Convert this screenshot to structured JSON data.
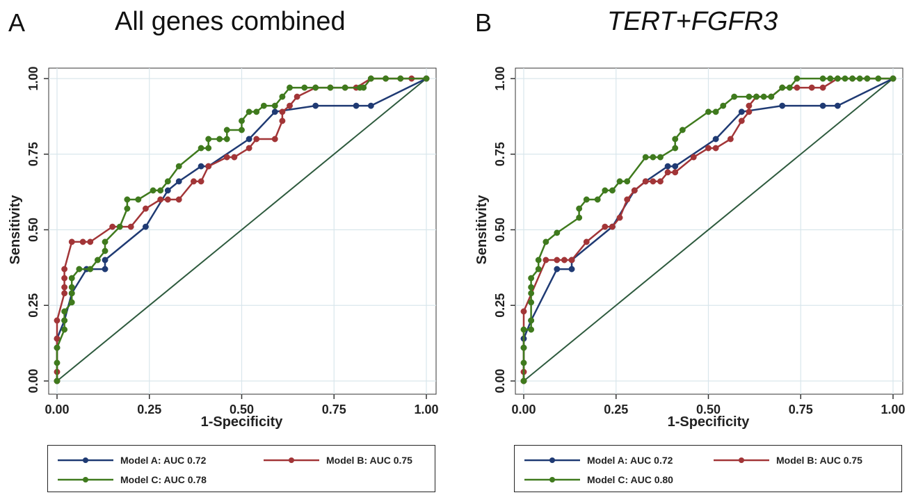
{
  "colors": {
    "model_a": "#1f3a73",
    "model_b": "#a23537",
    "model_c": "#3f7a1d",
    "diagonal": "#2d5a3d",
    "grid": "#d9e6ec",
    "axis": "#333333",
    "plot_bg": "#ffffff"
  },
  "icons": {
    "marker": "filled-circle"
  },
  "chart_data": [
    {
      "type": "line",
      "panel_label": "A",
      "title": "All genes combined",
      "xlabel": "1-Specificity",
      "ylabel": "Sensitivity",
      "xlim": [
        0,
        1
      ],
      "ylim": [
        0,
        1
      ],
      "xticks": [
        "0.00",
        "0.25",
        "0.50",
        "0.75",
        "1.00"
      ],
      "yticks": [
        "0.00",
        "0.25",
        "0.50",
        "0.75",
        "1.00"
      ],
      "grid": true,
      "legend_position": "bottom",
      "reference_line": [
        [
          0,
          0
        ],
        [
          1,
          1
        ]
      ],
      "series": [
        {
          "name": "Model A: AUC 0.72",
          "color_key": "model_a",
          "points": [
            [
              0,
              0
            ],
            [
              0,
              0.11
            ],
            [
              0,
              0.14
            ],
            [
              0.02,
              0.2
            ],
            [
              0.04,
              0.29
            ],
            [
              0.08,
              0.37
            ],
            [
              0.13,
              0.37
            ],
            [
              0.13,
              0.4
            ],
            [
              0.24,
              0.51
            ],
            [
              0.3,
              0.63
            ],
            [
              0.33,
              0.66
            ],
            [
              0.39,
              0.71
            ],
            [
              0.41,
              0.71
            ],
            [
              0.52,
              0.8
            ],
            [
              0.59,
              0.89
            ],
            [
              0.7,
              0.91
            ],
            [
              0.81,
              0.91
            ],
            [
              0.85,
              0.91
            ],
            [
              1,
              1
            ]
          ]
        },
        {
          "name": "Model B: AUC 0.75",
          "color_key": "model_b",
          "points": [
            [
              0,
              0
            ],
            [
              0,
              0.03
            ],
            [
              0,
              0.14
            ],
            [
              0,
              0.2
            ],
            [
              0.02,
              0.29
            ],
            [
              0.02,
              0.31
            ],
            [
              0.02,
              0.34
            ],
            [
              0.02,
              0.37
            ],
            [
              0.04,
              0.46
            ],
            [
              0.07,
              0.46
            ],
            [
              0.09,
              0.46
            ],
            [
              0.15,
              0.51
            ],
            [
              0.2,
              0.51
            ],
            [
              0.24,
              0.57
            ],
            [
              0.28,
              0.6
            ],
            [
              0.3,
              0.6
            ],
            [
              0.33,
              0.6
            ],
            [
              0.37,
              0.66
            ],
            [
              0.39,
              0.66
            ],
            [
              0.41,
              0.71
            ],
            [
              0.46,
              0.74
            ],
            [
              0.48,
              0.74
            ],
            [
              0.52,
              0.77
            ],
            [
              0.54,
              0.8
            ],
            [
              0.59,
              0.8
            ],
            [
              0.61,
              0.86
            ],
            [
              0.61,
              0.89
            ],
            [
              0.63,
              0.91
            ],
            [
              0.65,
              0.94
            ],
            [
              0.7,
              0.97
            ],
            [
              0.74,
              0.97
            ],
            [
              0.78,
              0.97
            ],
            [
              0.81,
              0.97
            ],
            [
              0.85,
              1
            ],
            [
              0.89,
              1
            ],
            [
              0.93,
              1
            ],
            [
              0.96,
              1
            ],
            [
              1,
              1
            ]
          ]
        },
        {
          "name": "Model C: AUC 0.78",
          "color_key": "model_c",
          "points": [
            [
              0,
              0
            ],
            [
              0,
              0.06
            ],
            [
              0,
              0.11
            ],
            [
              0.02,
              0.17
            ],
            [
              0.02,
              0.2
            ],
            [
              0.02,
              0.23
            ],
            [
              0.04,
              0.26
            ],
            [
              0.04,
              0.29
            ],
            [
              0.04,
              0.31
            ],
            [
              0.04,
              0.34
            ],
            [
              0.06,
              0.37
            ],
            [
              0.09,
              0.37
            ],
            [
              0.11,
              0.4
            ],
            [
              0.13,
              0.43
            ],
            [
              0.13,
              0.46
            ],
            [
              0.17,
              0.51
            ],
            [
              0.19,
              0.57
            ],
            [
              0.19,
              0.6
            ],
            [
              0.22,
              0.6
            ],
            [
              0.26,
              0.63
            ],
            [
              0.28,
              0.63
            ],
            [
              0.3,
              0.66
            ],
            [
              0.33,
              0.71
            ],
            [
              0.39,
              0.77
            ],
            [
              0.41,
              0.77
            ],
            [
              0.41,
              0.8
            ],
            [
              0.44,
              0.8
            ],
            [
              0.46,
              0.8
            ],
            [
              0.46,
              0.83
            ],
            [
              0.5,
              0.83
            ],
            [
              0.5,
              0.86
            ],
            [
              0.52,
              0.89
            ],
            [
              0.54,
              0.89
            ],
            [
              0.56,
              0.91
            ],
            [
              0.59,
              0.91
            ],
            [
              0.61,
              0.94
            ],
            [
              0.63,
              0.97
            ],
            [
              0.67,
              0.97
            ],
            [
              0.7,
              0.97
            ],
            [
              0.74,
              0.97
            ],
            [
              0.78,
              0.97
            ],
            [
              0.82,
              0.97
            ],
            [
              0.83,
              0.97
            ],
            [
              0.85,
              1
            ],
            [
              0.89,
              1
            ],
            [
              0.93,
              1
            ],
            [
              1,
              1
            ]
          ]
        }
      ]
    },
    {
      "type": "line",
      "panel_label": "B",
      "title": "TERT+FGFR3",
      "xlabel": "1-Specificity",
      "ylabel": "Sensitivity",
      "xlim": [
        0,
        1
      ],
      "ylim": [
        0,
        1
      ],
      "xticks": [
        "0.00",
        "0.25",
        "0.50",
        "0.75",
        "1.00"
      ],
      "yticks": [
        "0.00",
        "0.25",
        "0.50",
        "0.75",
        "1.00"
      ],
      "grid": true,
      "legend_position": "bottom",
      "reference_line": [
        [
          0,
          0
        ],
        [
          1,
          1
        ]
      ],
      "series": [
        {
          "name": "Model A: AUC 0.72",
          "color_key": "model_a",
          "points": [
            [
              0,
              0
            ],
            [
              0,
              0.11
            ],
            [
              0,
              0.14
            ],
            [
              0.02,
              0.2
            ],
            [
              0.09,
              0.37
            ],
            [
              0.13,
              0.37
            ],
            [
              0.13,
              0.4
            ],
            [
              0.24,
              0.51
            ],
            [
              0.3,
              0.63
            ],
            [
              0.33,
              0.66
            ],
            [
              0.39,
              0.71
            ],
            [
              0.41,
              0.71
            ],
            [
              0.52,
              0.8
            ],
            [
              0.59,
              0.89
            ],
            [
              0.7,
              0.91
            ],
            [
              0.81,
              0.91
            ],
            [
              0.85,
              0.91
            ],
            [
              1,
              1
            ]
          ]
        },
        {
          "name": "Model B: AUC 0.75",
          "color_key": "model_b",
          "points": [
            [
              0,
              0
            ],
            [
              0,
              0.03
            ],
            [
              0,
              0.23
            ],
            [
              0.06,
              0.4
            ],
            [
              0.09,
              0.4
            ],
            [
              0.11,
              0.4
            ],
            [
              0.13,
              0.4
            ],
            [
              0.17,
              0.46
            ],
            [
              0.22,
              0.51
            ],
            [
              0.24,
              0.51
            ],
            [
              0.26,
              0.54
            ],
            [
              0.28,
              0.6
            ],
            [
              0.3,
              0.63
            ],
            [
              0.33,
              0.66
            ],
            [
              0.35,
              0.66
            ],
            [
              0.37,
              0.66
            ],
            [
              0.39,
              0.69
            ],
            [
              0.41,
              0.69
            ],
            [
              0.46,
              0.74
            ],
            [
              0.5,
              0.77
            ],
            [
              0.52,
              0.77
            ],
            [
              0.56,
              0.8
            ],
            [
              0.59,
              0.86
            ],
            [
              0.61,
              0.89
            ],
            [
              0.61,
              0.91
            ],
            [
              0.63,
              0.94
            ],
            [
              0.67,
              0.94
            ],
            [
              0.7,
              0.97
            ],
            [
              0.74,
              0.97
            ],
            [
              0.78,
              0.97
            ],
            [
              0.81,
              0.97
            ],
            [
              0.85,
              1
            ],
            [
              0.89,
              1
            ],
            [
              0.93,
              1
            ],
            [
              1,
              1
            ]
          ]
        },
        {
          "name": "Model C: AUC 0.80",
          "color_key": "model_c",
          "points": [
            [
              0,
              0
            ],
            [
              0,
              0.06
            ],
            [
              0,
              0.11
            ],
            [
              0,
              0.17
            ],
            [
              0.02,
              0.17
            ],
            [
              0.02,
              0.2
            ],
            [
              0.02,
              0.26
            ],
            [
              0.02,
              0.29
            ],
            [
              0.02,
              0.31
            ],
            [
              0.02,
              0.34
            ],
            [
              0.04,
              0.37
            ],
            [
              0.04,
              0.4
            ],
            [
              0.06,
              0.46
            ],
            [
              0.09,
              0.49
            ],
            [
              0.15,
              0.54
            ],
            [
              0.15,
              0.57
            ],
            [
              0.17,
              0.6
            ],
            [
              0.2,
              0.6
            ],
            [
              0.22,
              0.63
            ],
            [
              0.24,
              0.63
            ],
            [
              0.26,
              0.66
            ],
            [
              0.28,
              0.66
            ],
            [
              0.33,
              0.74
            ],
            [
              0.35,
              0.74
            ],
            [
              0.37,
              0.74
            ],
            [
              0.41,
              0.77
            ],
            [
              0.41,
              0.8
            ],
            [
              0.43,
              0.83
            ],
            [
              0.5,
              0.89
            ],
            [
              0.52,
              0.89
            ],
            [
              0.54,
              0.91
            ],
            [
              0.57,
              0.94
            ],
            [
              0.61,
              0.94
            ],
            [
              0.63,
              0.94
            ],
            [
              0.65,
              0.94
            ],
            [
              0.67,
              0.94
            ],
            [
              0.7,
              0.97
            ],
            [
              0.72,
              0.97
            ],
            [
              0.74,
              1
            ],
            [
              0.81,
              1
            ],
            [
              0.83,
              1
            ],
            [
              0.85,
              1
            ],
            [
              0.87,
              1
            ],
            [
              0.89,
              1
            ],
            [
              0.91,
              1
            ],
            [
              0.93,
              1
            ],
            [
              0.96,
              1
            ],
            [
              1,
              1
            ]
          ]
        }
      ]
    }
  ]
}
